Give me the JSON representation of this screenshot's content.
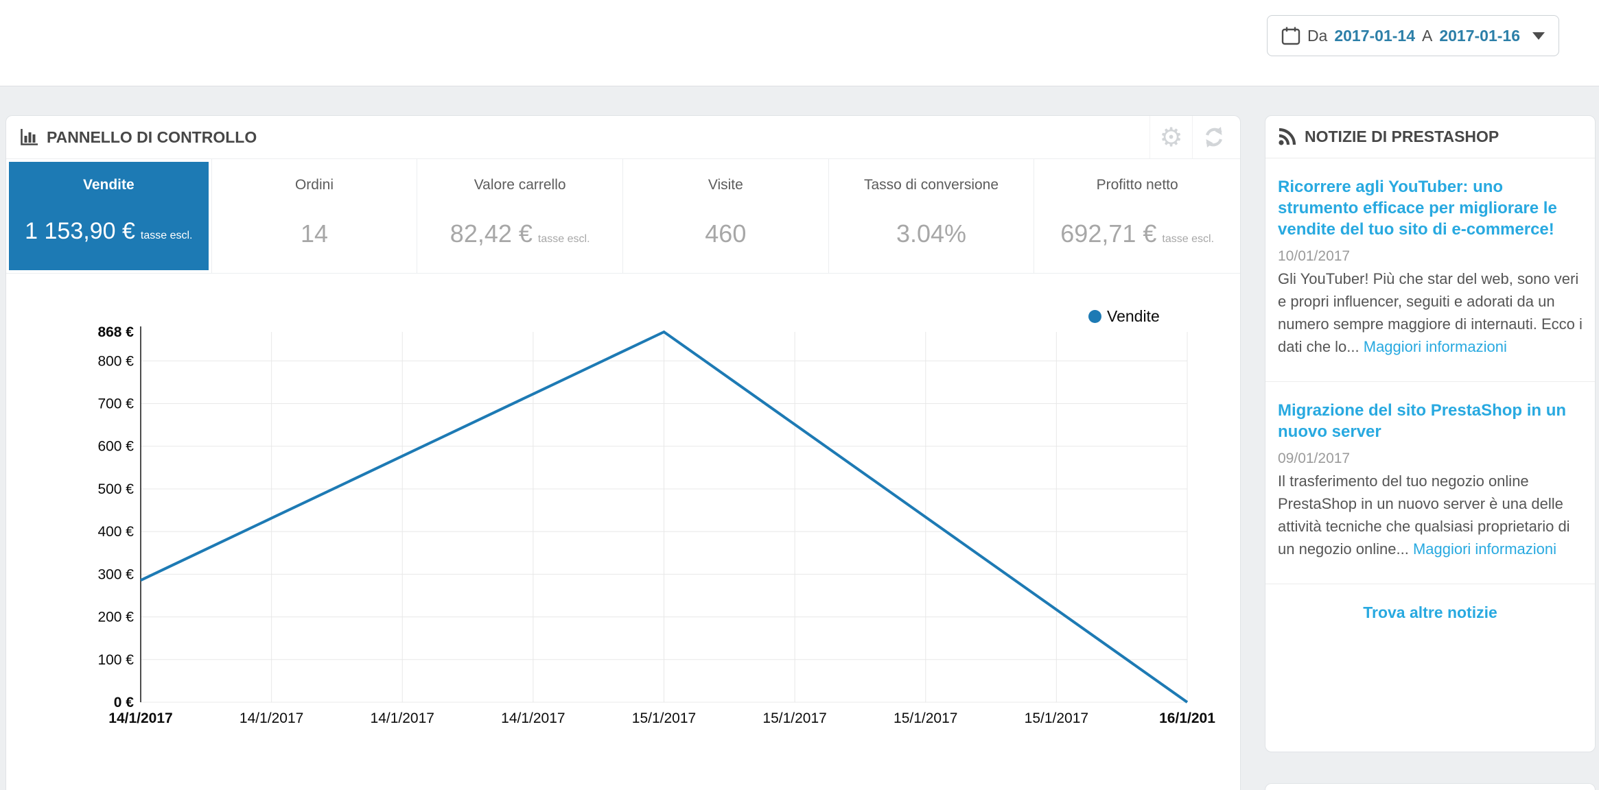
{
  "colors": {
    "accent_blue": "#1d7ab4",
    "link_blue": "#28a9e0",
    "picker_blue": "#2c7fa8"
  },
  "topbar": {
    "datepicker": {
      "prefix": "Da",
      "from": "2017-01-14",
      "middle": "A",
      "to": "2017-01-16"
    }
  },
  "dashboard": {
    "title": "PANNELLO DI CONTROLLO",
    "kpis": [
      {
        "label": "Vendite",
        "value": "1 153,90 €",
        "suffix": "tasse escl."
      },
      {
        "label": "Ordini",
        "value": "14",
        "suffix": ""
      },
      {
        "label": "Valore carrello",
        "value": "82,42 €",
        "suffix": "tasse escl."
      },
      {
        "label": "Visite",
        "value": "460",
        "suffix": ""
      },
      {
        "label": "Tasso di conversione",
        "value": "3.04%",
        "suffix": ""
      },
      {
        "label": "Profitto netto",
        "value": "692,71 €",
        "suffix": "tasse escl."
      }
    ],
    "legend": {
      "label": "Vendite"
    }
  },
  "chart_data": {
    "type": "line",
    "title": "Vendite",
    "x_tick_labels": [
      "14/1/2017",
      "14/1/2017",
      "14/1/2017",
      "14/1/2017",
      "15/1/2017",
      "15/1/2017",
      "15/1/2017",
      "15/1/2017",
      "16/1/201"
    ],
    "values_at_ticks": [
      285.9,
      431.4,
      576.9,
      722.5,
      868,
      651,
      434,
      217,
      0
    ],
    "daily_points": [
      {
        "date": "14/1/2017",
        "value": 285.9
      },
      {
        "date": "15/1/2017",
        "value": 868.0
      },
      {
        "date": "16/1/2017",
        "value": 0.0
      }
    ],
    "y_ticks": [
      868,
      800,
      700,
      600,
      500,
      400,
      300,
      200,
      100,
      0
    ],
    "y_tick_labels": [
      "868 €",
      "800 €",
      "700 €",
      "600 €",
      "500 €",
      "400 €",
      "300 €",
      "200 €",
      "100 €",
      "0 €"
    ],
    "ylim": [
      0,
      868
    ],
    "xlabel": "",
    "ylabel": "",
    "grid": true,
    "legend_position": "top-right",
    "line_color": "#1d7ab4"
  },
  "news": {
    "title": "NOTIZIE DI PRESTASHOP",
    "items": [
      {
        "title": "Ricorrere agli YouTuber: uno strumento efficace per migliorare le vendite del tuo sito di e-commerce!",
        "date": "10/01/2017",
        "body": "Gli YouTuber! Più che star del web, sono veri e propri influencer, seguiti e adorati da un numero sempre maggiore di internauti. Ecco i dati che lo... ",
        "link": "Maggiori informazioni"
      },
      {
        "title": "Migrazione del sito PrestaShop in un nuovo server",
        "date": "09/01/2017",
        "body": "Il trasferimento del tuo negozio online PrestaShop in un nuovo server è una delle attività tecniche che qualsiasi proprietario di un negozio online... ",
        "link": "Maggiori informazioni"
      }
    ],
    "footer_link": "Trova altre notizie"
  }
}
